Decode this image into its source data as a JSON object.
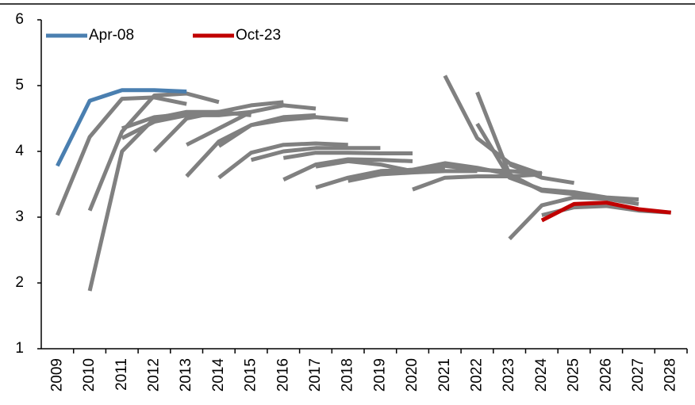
{
  "chart_data": {
    "type": "line",
    "categories": [
      "2009",
      "2010",
      "2011",
      "2012",
      "2013",
      "2014",
      "2015",
      "2016",
      "2017",
      "2018",
      "2019",
      "2020",
      "2021",
      "2022",
      "2023",
      "2024",
      "2025",
      "2026",
      "2027",
      "2028"
    ],
    "ylim": [
      1,
      6
    ],
    "yticks": [
      1,
      2,
      3,
      4,
      5,
      6
    ],
    "grid": false,
    "legend": "top-left",
    "series": [
      {
        "color": "#808080",
        "values": [
          3.03,
          4.22,
          4.8,
          4.82,
          4.72,
          null,
          null,
          null,
          null,
          null,
          null,
          null,
          null,
          null,
          null,
          null,
          null,
          null,
          null,
          null
        ]
      },
      {
        "color": "#808080",
        "values": [
          null,
          3.1,
          4.3,
          4.85,
          4.88,
          4.75,
          null,
          null,
          null,
          null,
          null,
          null,
          null,
          null,
          null,
          null,
          null,
          null,
          null,
          null
        ]
      },
      {
        "color": "#808080",
        "values": [
          null,
          1.88,
          4.0,
          4.5,
          4.6,
          4.6,
          null,
          null,
          null,
          null,
          null,
          null,
          null,
          null,
          null,
          null,
          null,
          null,
          null,
          null
        ]
      },
      {
        "color": "#808080",
        "values": [
          null,
          null,
          4.35,
          4.52,
          4.57,
          4.6,
          4.55,
          null,
          null,
          null,
          null,
          null,
          null,
          null,
          null,
          null,
          null,
          null,
          null,
          null
        ]
      },
      {
        "color": "#808080",
        "values": [
          null,
          null,
          4.2,
          4.45,
          4.55,
          4.55,
          4.6,
          null,
          null,
          null,
          null,
          null,
          null,
          null,
          null,
          null,
          null,
          null,
          null,
          null
        ]
      },
      {
        "color": "#808080",
        "values": [
          null,
          null,
          null,
          4.0,
          4.5,
          4.6,
          4.7,
          4.75,
          null,
          null,
          null,
          null,
          null,
          null,
          null,
          null,
          null,
          null,
          null,
          null
        ]
      },
      {
        "color": "#808080",
        "values": [
          null,
          null,
          null,
          null,
          4.1,
          4.35,
          4.6,
          4.7,
          4.65,
          null,
          null,
          null,
          null,
          null,
          null,
          null,
          null,
          null,
          null,
          null
        ]
      },
      {
        "color": "#808080",
        "values": [
          null,
          null,
          null,
          null,
          3.62,
          4.15,
          4.4,
          4.52,
          4.55,
          null,
          null,
          null,
          null,
          null,
          null,
          null,
          null,
          null,
          null,
          null
        ]
      },
      {
        "color": "#808080",
        "values": [
          null,
          null,
          null,
          null,
          null,
          3.6,
          3.98,
          4.1,
          4.12,
          4.1,
          null,
          null,
          null,
          null,
          null,
          null,
          null,
          null,
          null,
          null
        ]
      },
      {
        "color": "#808080",
        "values": [
          null,
          null,
          null,
          null,
          null,
          4.08,
          4.4,
          4.48,
          4.52,
          4.48,
          null,
          null,
          null,
          null,
          null,
          null,
          null,
          null,
          null,
          null
        ]
      },
      {
        "color": "#808080",
        "values": [
          null,
          null,
          null,
          null,
          null,
          null,
          3.87,
          4.0,
          4.05,
          4.05,
          4.05,
          null,
          null,
          null,
          null,
          null,
          null,
          null,
          null,
          null
        ]
      },
      {
        "color": "#808080",
        "values": [
          null,
          null,
          null,
          null,
          null,
          null,
          null,
          3.9,
          3.98,
          3.98,
          3.97,
          3.97,
          null,
          null,
          null,
          null,
          null,
          null,
          null,
          null
        ]
      },
      {
        "color": "#808080",
        "values": [
          null,
          null,
          null,
          null,
          null,
          null,
          null,
          3.57,
          3.8,
          3.88,
          3.87,
          3.85,
          null,
          null,
          null,
          null,
          null,
          null,
          null,
          null
        ]
      },
      {
        "color": "#808080",
        "values": [
          null,
          null,
          null,
          null,
          null,
          null,
          null,
          null,
          3.77,
          3.85,
          3.8,
          3.7,
          3.72,
          null,
          null,
          null,
          null,
          null,
          null,
          null
        ]
      },
      {
        "color": "#808080",
        "values": [
          null,
          null,
          null,
          null,
          null,
          null,
          null,
          null,
          3.45,
          3.6,
          3.7,
          3.72,
          3.73,
          null,
          null,
          null,
          null,
          null,
          null,
          null
        ]
      },
      {
        "color": "#808080",
        "values": [
          null,
          null,
          null,
          null,
          null,
          null,
          null,
          null,
          null,
          3.55,
          3.65,
          3.68,
          3.7,
          3.7,
          null,
          null,
          null,
          null,
          null,
          null
        ]
      },
      {
        "color": "#808080",
        "values": [
          null,
          null,
          null,
          null,
          null,
          null,
          null,
          null,
          null,
          null,
          3.7,
          3.72,
          3.82,
          3.75,
          3.65,
          null,
          null,
          null,
          null,
          null
        ]
      },
      {
        "color": "#808080",
        "values": [
          null,
          null,
          null,
          null,
          null,
          null,
          null,
          null,
          null,
          null,
          null,
          3.42,
          3.6,
          3.62,
          3.62,
          3.65,
          null,
          null,
          null,
          null
        ]
      },
      {
        "color": "#808080",
        "values": [
          null,
          null,
          null,
          null,
          null,
          null,
          null,
          null,
          null,
          null,
          null,
          3.72,
          3.78,
          3.72,
          3.7,
          3.67,
          null,
          null,
          null,
          null
        ]
      },
      {
        "color": "#808080",
        "values": [
          null,
          null,
          null,
          null,
          null,
          null,
          null,
          null,
          null,
          null,
          null,
          null,
          5.15,
          4.2,
          3.82,
          3.65,
          null,
          null,
          null,
          null
        ]
      },
      {
        "color": "#808080",
        "values": [
          null,
          null,
          null,
          null,
          null,
          null,
          null,
          null,
          null,
          null,
          null,
          null,
          null,
          4.9,
          3.65,
          3.4,
          3.35,
          3.3,
          null,
          null
        ]
      },
      {
        "color": "#808080",
        "values": [
          null,
          null,
          null,
          null,
          null,
          null,
          null,
          null,
          null,
          null,
          null,
          null,
          null,
          4.42,
          3.6,
          3.42,
          3.38,
          3.3,
          3.27,
          null
        ]
      },
      {
        "color": "#808080",
        "values": [
          null,
          null,
          null,
          null,
          null,
          null,
          null,
          null,
          null,
          null,
          null,
          null,
          null,
          null,
          2.67,
          3.18,
          3.3,
          3.28,
          3.2,
          null
        ]
      },
      {
        "color": "#808080",
        "values": [
          null,
          null,
          null,
          null,
          null,
          null,
          null,
          null,
          null,
          null,
          null,
          null,
          null,
          null,
          null,
          3.03,
          3.15,
          3.17,
          3.1,
          3.07
        ]
      },
      {
        "color": "#808080",
        "values": [
          null,
          null,
          null,
          null,
          null,
          null,
          null,
          null,
          null,
          null,
          null,
          null,
          null,
          null,
          3.8,
          3.6,
          3.52,
          null,
          null,
          null
        ]
      },
      {
        "name": "Apr-08",
        "color": "#4a7fb0",
        "values": [
          3.78,
          4.77,
          4.93,
          4.93,
          4.91,
          null,
          null,
          null,
          null,
          null,
          null,
          null,
          null,
          null,
          null,
          null,
          null,
          null,
          null,
          null
        ]
      },
      {
        "name": "Oct-23",
        "color": "#c00000",
        "values": [
          null,
          null,
          null,
          null,
          null,
          null,
          null,
          null,
          null,
          null,
          null,
          null,
          null,
          null,
          null,
          2.95,
          3.2,
          3.22,
          3.12,
          3.07
        ]
      }
    ]
  }
}
